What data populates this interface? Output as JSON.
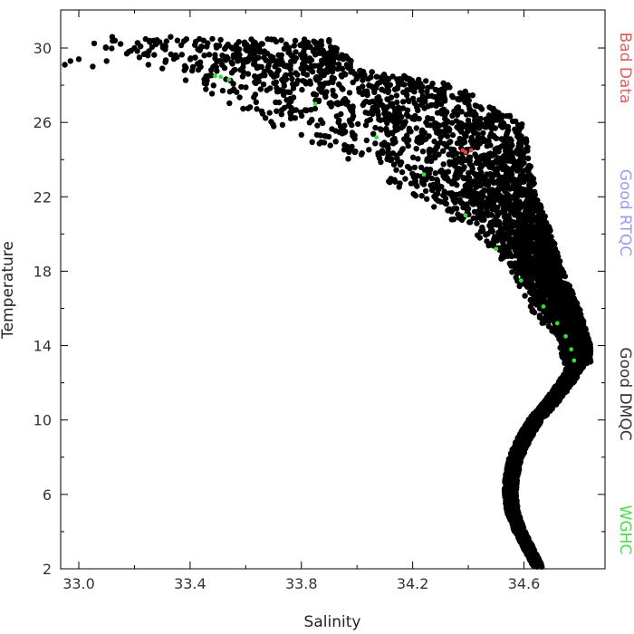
{
  "chart_data": {
    "type": "scatter",
    "title": "",
    "xlabel": "Salinity",
    "ylabel": "Temperature",
    "xlim": [
      32.95,
      34.85
    ],
    "ylim": [
      2,
      32
    ],
    "xticks": [
      33.0,
      33.4,
      33.8,
      34.2,
      34.6
    ],
    "xtick_labels": [
      "33.0",
      "33.4",
      "33.8",
      "34.2",
      "34.6"
    ],
    "yticks": [
      2,
      6,
      10,
      14,
      18,
      22,
      26,
      30
    ],
    "ytick_labels": [
      "2",
      "6",
      "10",
      "14",
      "18",
      "22",
      "26",
      "30"
    ],
    "grid": false,
    "legend_position": "right",
    "legend": [
      {
        "name": "Bad Data",
        "color": "#e55a5a"
      },
      {
        "name": "Good RTQC",
        "color": "#9a9af0"
      },
      {
        "name": "Good DMQC",
        "color": "#333333"
      },
      {
        "name": "WGHC",
        "color": "#44dd44"
      }
    ],
    "series": [
      {
        "name": "Good DMQC",
        "color": "#000000",
        "envelope": {
          "description_points": [
            {
              "y": 30.5,
              "s_min": 32.95,
              "s_max": 33.9
            },
            {
              "y": 29.0,
              "s_min": 33.3,
              "s_max": 34.0
            },
            {
              "y": 28.0,
              "s_min": 33.4,
              "s_max": 34.35
            },
            {
              "y": 26.0,
              "s_min": 33.65,
              "s_max": 34.6
            },
            {
              "y": 24.0,
              "s_min": 33.95,
              "s_max": 34.62
            },
            {
              "y": 22.0,
              "s_min": 34.2,
              "s_max": 34.65
            },
            {
              "y": 20.0,
              "s_min": 34.42,
              "s_max": 34.7
            },
            {
              "y": 18.0,
              "s_min": 34.55,
              "s_max": 34.74
            },
            {
              "y": 16.0,
              "s_min": 34.62,
              "s_max": 34.8
            },
            {
              "y": 14.0,
              "s_min": 34.72,
              "s_max": 34.84
            },
            {
              "y": 13.0,
              "s_min": 34.74,
              "s_max": 34.84
            }
          ]
        },
        "band": {
          "y_from": 2.0,
          "y_to": 13.0,
          "points": [
            {
              "y": 13.0,
              "s": 34.79
            },
            {
              "y": 12.0,
              "s": 34.75
            },
            {
              "y": 11.0,
              "s": 34.7
            },
            {
              "y": 10.0,
              "s": 34.64
            },
            {
              "y": 9.0,
              "s": 34.6
            },
            {
              "y": 8.0,
              "s": 34.57
            },
            {
              "y": 7.0,
              "s": 34.555
            },
            {
              "y": 6.0,
              "s": 34.55
            },
            {
              "y": 5.0,
              "s": 34.56
            },
            {
              "y": 4.0,
              "s": 34.585
            },
            {
              "y": 3.0,
              "s": 34.62
            },
            {
              "y": 2.0,
              "s": 34.655
            }
          ],
          "half_width": 0.03
        },
        "extra_points": [
          {
            "x": 32.95,
            "y": 29.1
          },
          {
            "x": 32.97,
            "y": 29.3
          },
          {
            "x": 33.0,
            "y": 29.4
          },
          {
            "x": 33.05,
            "y": 29.0
          },
          {
            "x": 33.1,
            "y": 29.3
          },
          {
            "x": 33.12,
            "y": 30.6
          },
          {
            "x": 33.13,
            "y": 30.4
          },
          {
            "x": 33.18,
            "y": 29.8
          },
          {
            "x": 33.2,
            "y": 30.0
          },
          {
            "x": 33.25,
            "y": 29.1
          },
          {
            "x": 33.27,
            "y": 30.4
          },
          {
            "x": 33.3,
            "y": 28.9
          },
          {
            "x": 33.33,
            "y": 30.6
          },
          {
            "x": 33.38,
            "y": 28.8
          }
        ]
      },
      {
        "name": "WGHC",
        "color": "#33dd33",
        "points": [
          {
            "x": 33.49,
            "y": 28.5
          },
          {
            "x": 33.51,
            "y": 28.45
          },
          {
            "x": 33.54,
            "y": 28.3
          },
          {
            "x": 33.85,
            "y": 27.0
          },
          {
            "x": 34.07,
            "y": 25.2
          },
          {
            "x": 34.24,
            "y": 23.2
          },
          {
            "x": 34.39,
            "y": 21.0
          },
          {
            "x": 34.5,
            "y": 19.2
          },
          {
            "x": 34.59,
            "y": 17.5
          },
          {
            "x": 34.67,
            "y": 16.1
          },
          {
            "x": 34.72,
            "y": 15.2
          },
          {
            "x": 34.75,
            "y": 14.5
          },
          {
            "x": 34.77,
            "y": 13.8
          },
          {
            "x": 34.78,
            "y": 13.2
          }
        ]
      },
      {
        "name": "Bad Data",
        "color": "#e04040",
        "points": [
          {
            "x": 34.38,
            "y": 24.5
          },
          {
            "x": 34.39,
            "y": 24.4
          },
          {
            "x": 34.41,
            "y": 24.5
          }
        ]
      }
    ]
  }
}
